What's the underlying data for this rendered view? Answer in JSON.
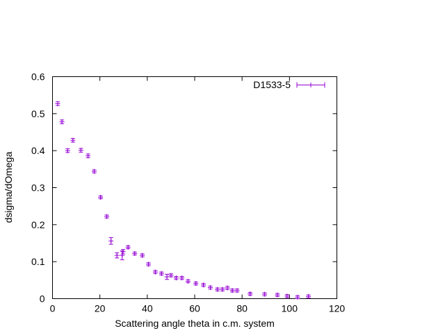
{
  "chart_data": {
    "type": "scatter",
    "title": "",
    "xlabel": "Scattering angle theta in c.m. system",
    "ylabel": "dsigma/dOmega",
    "xlim": [
      0,
      120
    ],
    "ylim": [
      0,
      0.6
    ],
    "xticks": [
      "0",
      "20",
      "40",
      "60",
      "80",
      "100",
      "120"
    ],
    "yticks": [
      "0",
      "0.1",
      "0.2",
      "0.3",
      "0.4",
      "0.5",
      "0.6"
    ],
    "grid": false,
    "legend_position": "top-right",
    "marker": "plus",
    "error_bars": "vertical",
    "series": [
      {
        "name": "D1533-5",
        "color": "#9400d3",
        "points": [
          {
            "x": 2.2,
            "y": 0.527,
            "err": 0.005
          },
          {
            "x": 4.0,
            "y": 0.478,
            "err": 0.005
          },
          {
            "x": 6.4,
            "y": 0.4,
            "err": 0.005
          },
          {
            "x": 8.6,
            "y": 0.428,
            "err": 0.005
          },
          {
            "x": 12.0,
            "y": 0.401,
            "err": 0.005
          },
          {
            "x": 15.0,
            "y": 0.386,
            "err": 0.005
          },
          {
            "x": 17.6,
            "y": 0.344,
            "err": 0.004
          },
          {
            "x": 20.3,
            "y": 0.274,
            "err": 0.004
          },
          {
            "x": 22.9,
            "y": 0.222,
            "err": 0.004
          },
          {
            "x": 24.7,
            "y": 0.156,
            "err": 0.009
          },
          {
            "x": 27.2,
            "y": 0.117,
            "err": 0.007
          },
          {
            "x": 29.4,
            "y": 0.117,
            "err": 0.012
          },
          {
            "x": 29.8,
            "y": 0.127,
            "err": 0.006
          },
          {
            "x": 31.9,
            "y": 0.139,
            "err": 0.004
          },
          {
            "x": 34.7,
            "y": 0.122,
            "err": 0.004
          },
          {
            "x": 37.9,
            "y": 0.117,
            "err": 0.004
          },
          {
            "x": 40.5,
            "y": 0.093,
            "err": 0.004
          },
          {
            "x": 43.4,
            "y": 0.072,
            "err": 0.004
          },
          {
            "x": 46.0,
            "y": 0.068,
            "err": 0.004
          },
          {
            "x": 48.3,
            "y": 0.059,
            "err": 0.007
          },
          {
            "x": 50.0,
            "y": 0.063,
            "err": 0.004
          },
          {
            "x": 52.2,
            "y": 0.056,
            "err": 0.004
          },
          {
            "x": 54.6,
            "y": 0.056,
            "err": 0.004
          },
          {
            "x": 57.2,
            "y": 0.047,
            "err": 0.004
          },
          {
            "x": 60.5,
            "y": 0.041,
            "err": 0.004
          },
          {
            "x": 63.7,
            "y": 0.037,
            "err": 0.004
          },
          {
            "x": 66.6,
            "y": 0.03,
            "err": 0.004
          },
          {
            "x": 69.6,
            "y": 0.025,
            "err": 0.004
          },
          {
            "x": 71.7,
            "y": 0.025,
            "err": 0.004
          },
          {
            "x": 73.8,
            "y": 0.029,
            "err": 0.004
          },
          {
            "x": 75.9,
            "y": 0.022,
            "err": 0.004
          },
          {
            "x": 77.9,
            "y": 0.022,
            "err": 0.004
          },
          {
            "x": 83.4,
            "y": 0.013,
            "err": 0.004
          },
          {
            "x": 89.5,
            "y": 0.012,
            "err": 0.004
          },
          {
            "x": 94.9,
            "y": 0.01,
            "err": 0.004
          },
          {
            "x": 99.0,
            "y": 0.007,
            "err": 0.004
          },
          {
            "x": 103.4,
            "y": 0.004,
            "err": 0.004
          },
          {
            "x": 108.0,
            "y": 0.006,
            "err": 0.004
          }
        ]
      }
    ]
  }
}
